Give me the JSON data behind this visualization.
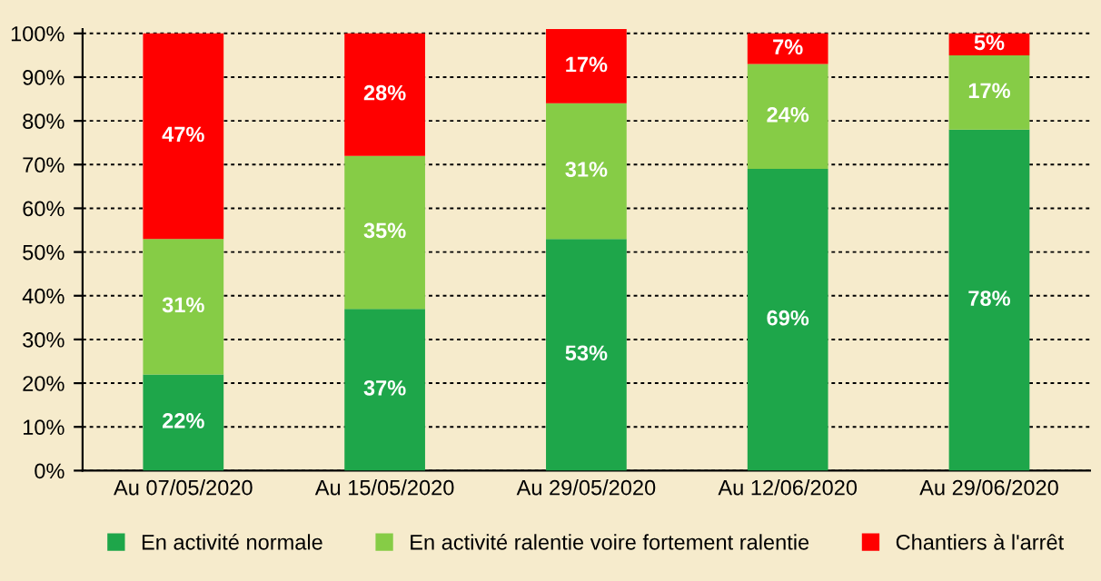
{
  "chart_data": {
    "type": "bar",
    "stacked": true,
    "categories": [
      "Au 07/05/2020",
      "Au 15/05/2020",
      "Au 29/05/2020",
      "Au 12/06/2020",
      "Au 29/06/2020"
    ],
    "series": [
      {
        "name": "En activité normale",
        "color": "#1ea64a",
        "values": [
          22,
          37,
          53,
          69,
          78
        ],
        "value_labels": [
          "22%",
          "37%",
          "53%",
          "69%",
          "78%"
        ]
      },
      {
        "name": "En activité ralentie voire fortement ralentie",
        "color": "#86cc46",
        "values": [
          31,
          35,
          31,
          24,
          17
        ],
        "value_labels": [
          "31%",
          "35%",
          "31%",
          "24%",
          "17%"
        ]
      },
      {
        "name": "Chantiers à l'arrêt",
        "color": "#ff0000",
        "values": [
          47,
          28,
          17,
          7,
          5
        ],
        "value_labels": [
          "47%",
          "28%",
          "17%",
          "7%",
          "5%"
        ]
      }
    ],
    "ylim": [
      0,
      101
    ],
    "yticks": [
      {
        "value": 0,
        "label": "0%"
      },
      {
        "value": 10,
        "label": "10%"
      },
      {
        "value": 20,
        "label": "20%"
      },
      {
        "value": 30,
        "label": "30%"
      },
      {
        "value": 40,
        "label": "40%"
      },
      {
        "value": 50,
        "label": "50%"
      },
      {
        "value": 60,
        "label": "60%"
      },
      {
        "value": 70,
        "label": "70%"
      },
      {
        "value": 80,
        "label": "80%"
      },
      {
        "value": 90,
        "label": "90%"
      },
      {
        "value": 100,
        "label": "100%"
      }
    ],
    "grid": "y",
    "legend": "bottom"
  }
}
